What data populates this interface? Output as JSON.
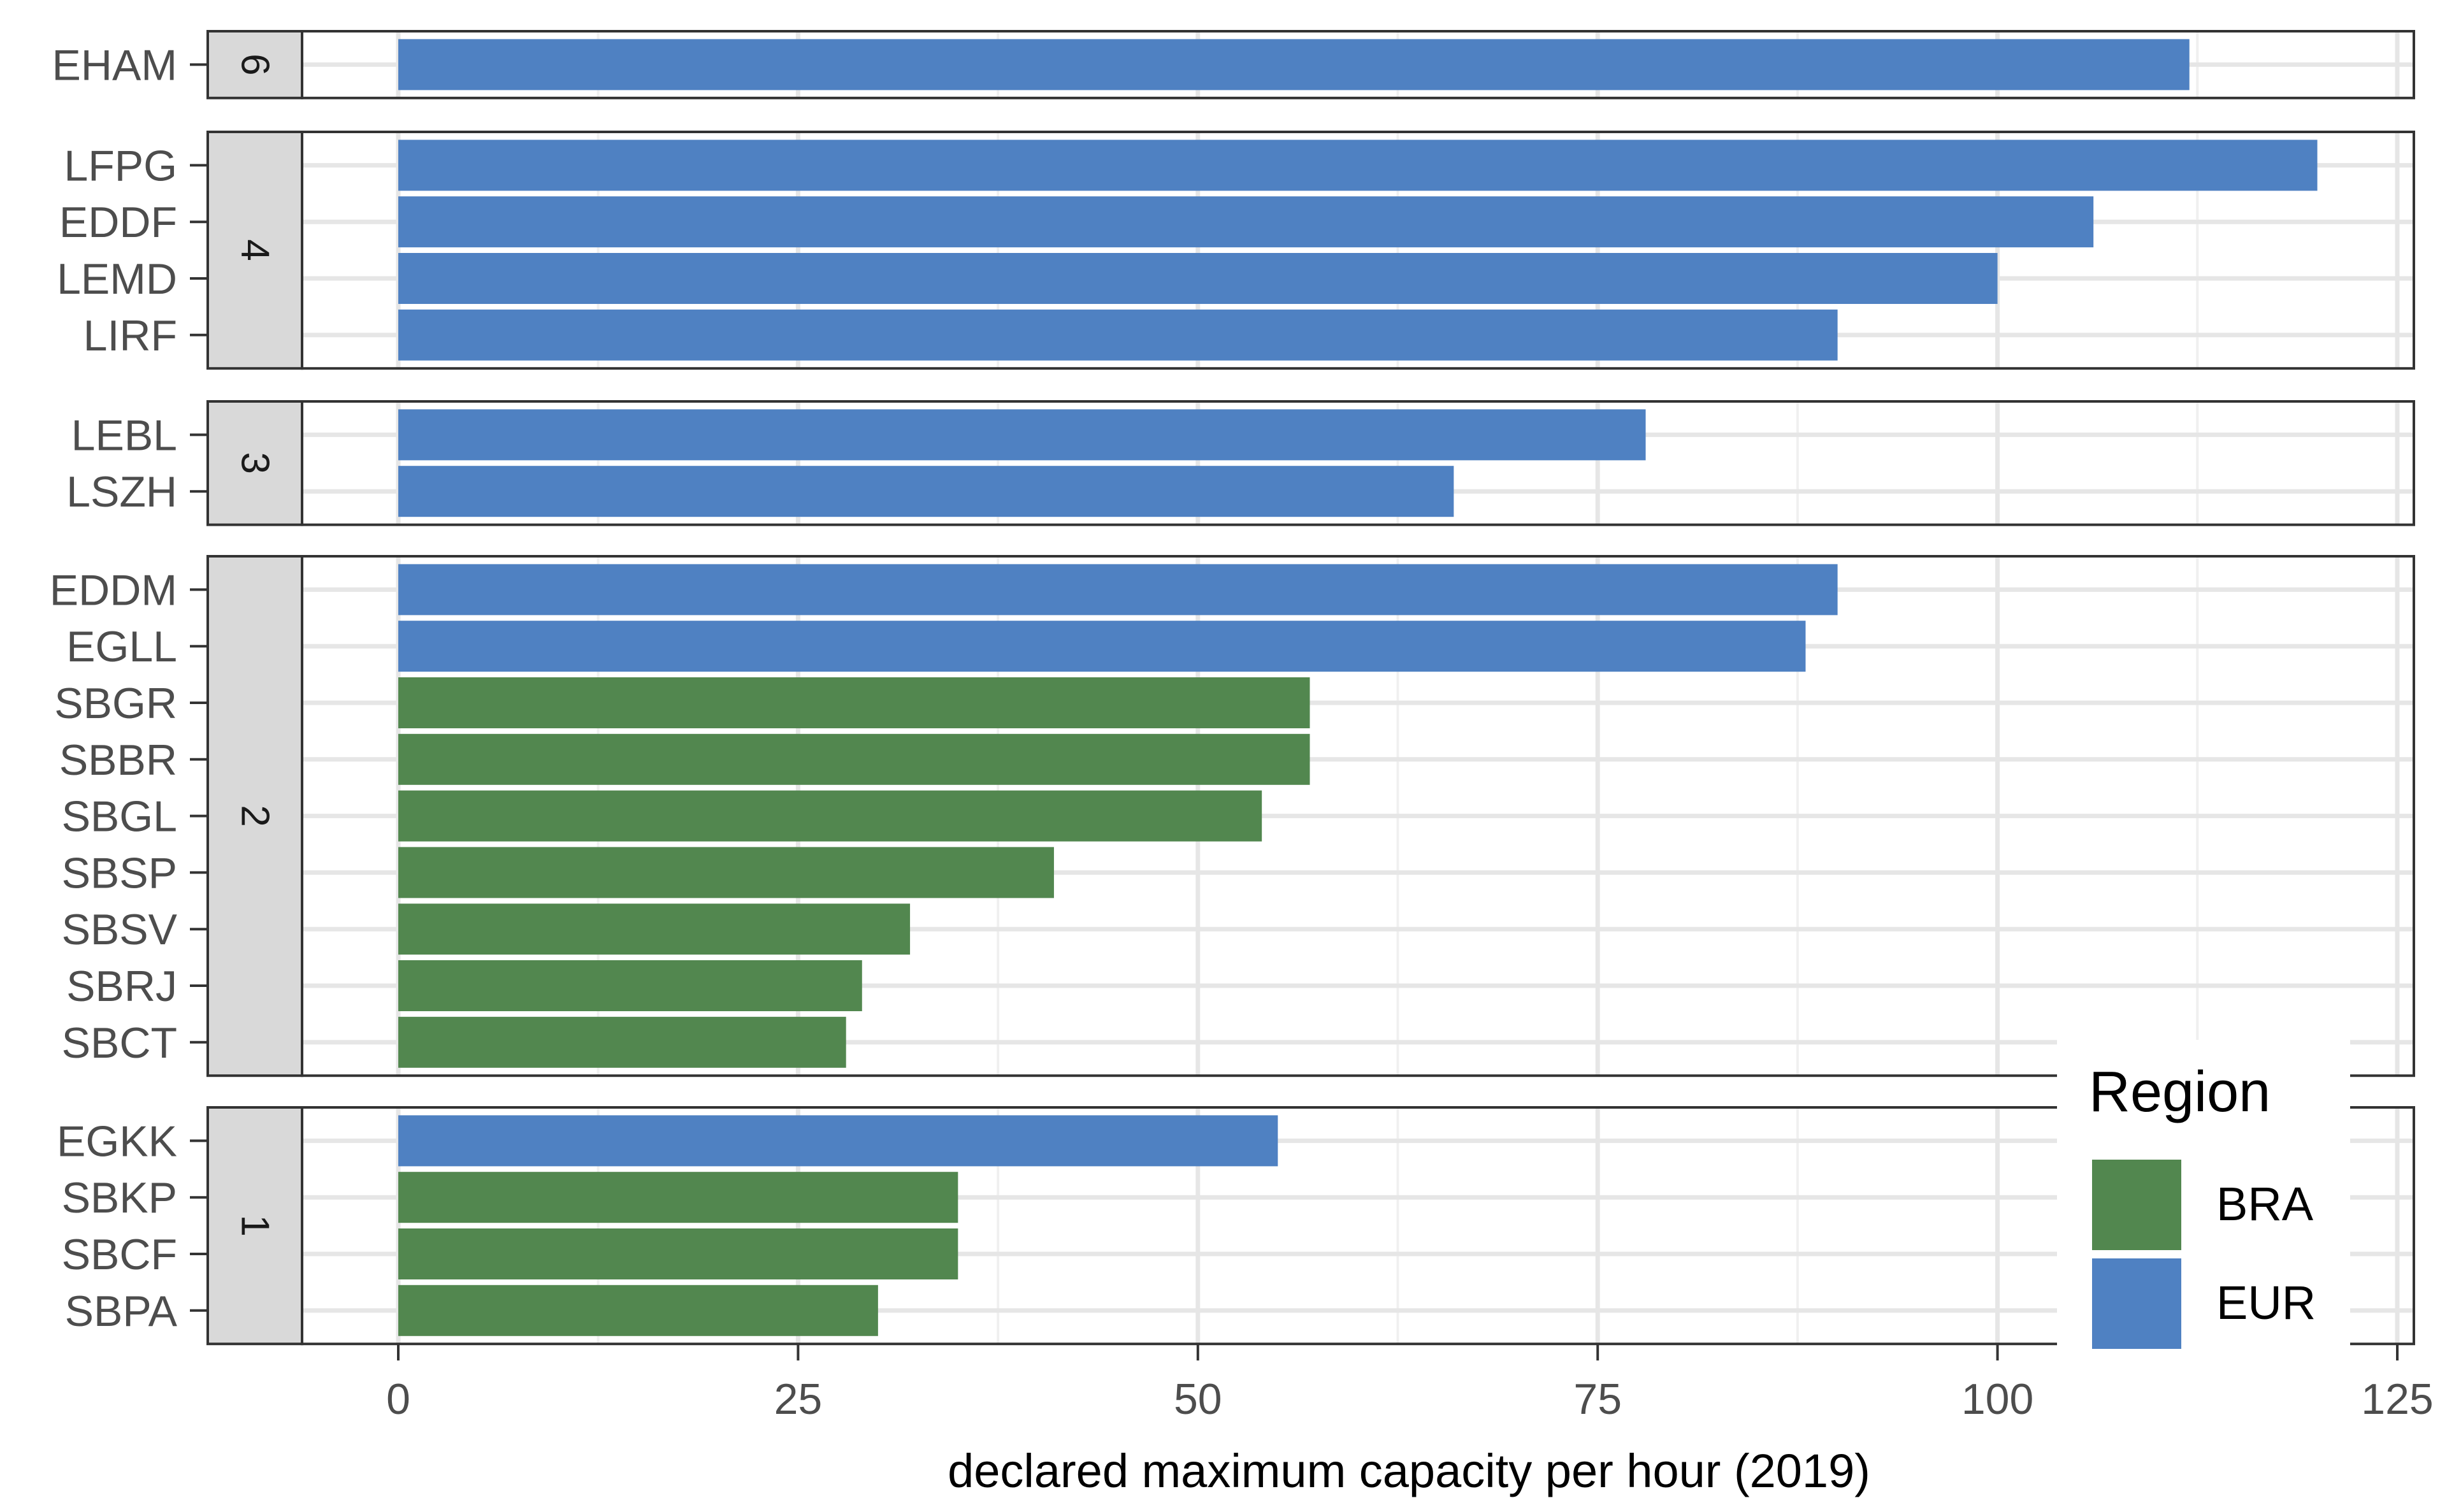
{
  "chart_data": {
    "type": "bar",
    "orientation": "horizontal",
    "xlabel": "declared maximum capacity per hour (2019)",
    "xlim": [
      -12,
      125
    ],
    "xticks": [
      0,
      25,
      50,
      75,
      100,
      125
    ],
    "xtick_labels": [
      "0",
      "25",
      "50",
      "75",
      "100",
      "125"
    ],
    "grid": true,
    "legend": {
      "title": "Region",
      "placement": "bottom-right",
      "entries": [
        {
          "name": "BRA",
          "color": "#52874f"
        },
        {
          "name": "EUR",
          "color": "#4f81c2"
        }
      ]
    },
    "panels": [
      {
        "facet": "6",
        "bars": [
          {
            "airport": "EHAM",
            "region": "EUR",
            "value": 112
          }
        ]
      },
      {
        "facet": "4",
        "bars": [
          {
            "airport": "LFPG",
            "region": "EUR",
            "value": 120
          },
          {
            "airport": "EDDF",
            "region": "EUR",
            "value": 106
          },
          {
            "airport": "LEMD",
            "region": "EUR",
            "value": 100
          },
          {
            "airport": "LIRF",
            "region": "EUR",
            "value": 90
          }
        ]
      },
      {
        "facet": "3",
        "bars": [
          {
            "airport": "LEBL",
            "region": "EUR",
            "value": 78
          },
          {
            "airport": "LSZH",
            "region": "EUR",
            "value": 66
          }
        ]
      },
      {
        "facet": "2",
        "bars": [
          {
            "airport": "EDDM",
            "region": "EUR",
            "value": 90
          },
          {
            "airport": "EGLL",
            "region": "EUR",
            "value": 88
          },
          {
            "airport": "SBGR",
            "region": "BRA",
            "value": 57
          },
          {
            "airport": "SBBR",
            "region": "BRA",
            "value": 57
          },
          {
            "airport": "SBGL",
            "region": "BRA",
            "value": 54
          },
          {
            "airport": "SBSP",
            "region": "BRA",
            "value": 41
          },
          {
            "airport": "SBSV",
            "region": "BRA",
            "value": 32
          },
          {
            "airport": "SBRJ",
            "region": "BRA",
            "value": 29
          },
          {
            "airport": "SBCT",
            "region": "BRA",
            "value": 28
          }
        ]
      },
      {
        "facet": "1",
        "bars": [
          {
            "airport": "EGKK",
            "region": "EUR",
            "value": 55
          },
          {
            "airport": "SBKP",
            "region": "BRA",
            "value": 35
          },
          {
            "airport": "SBCF",
            "region": "BRA",
            "value": 35
          },
          {
            "airport": "SBPA",
            "region": "BRA",
            "value": 30
          }
        ]
      }
    ]
  }
}
